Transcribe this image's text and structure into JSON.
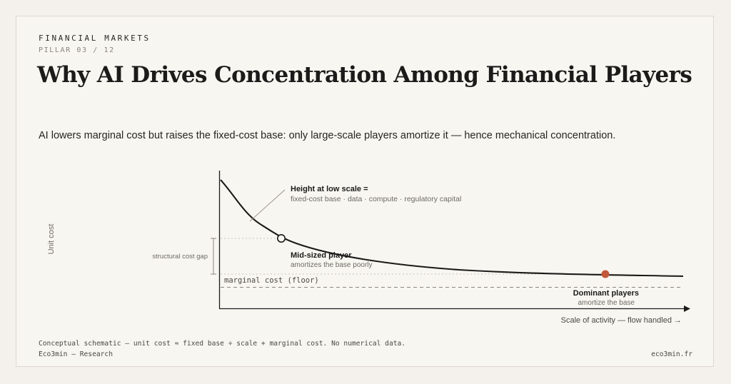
{
  "header": {
    "eyebrow": "FINANCIAL MARKETS",
    "pillar": "PILLAR 03 / 12",
    "title": "Why AI Drives Concentration Among Financial Players",
    "subtitle": "AI lowers marginal cost but raises the fixed-cost base: only large-scale players amortize it — hence mechanical concentration."
  },
  "diagram": {
    "y_axis_label": "Unit cost",
    "x_axis_label": "Scale of activity — flow handled →",
    "floor_label": "marginal cost (floor)",
    "gap_label": "structural cost gap",
    "callout_title": "Height at low scale =",
    "callout_detail": "fixed-cost base · data · compute · regulatory capital",
    "mid_player_title": "Mid-sized player",
    "mid_player_detail": "amortizes the base poorly",
    "dominant_title": "Dominant players",
    "dominant_detail": "amortize the base",
    "colors": {
      "curve": "#1c1b19",
      "dominant_marker": "#c2573a",
      "guide": "#b9b4aa"
    }
  },
  "footer": {
    "note": "Conceptual schematic — unit cost ≈ fixed base ÷ scale + marginal cost. No numerical data.",
    "brand": "Eco3min — Research",
    "url": "eco3min.fr"
  }
}
